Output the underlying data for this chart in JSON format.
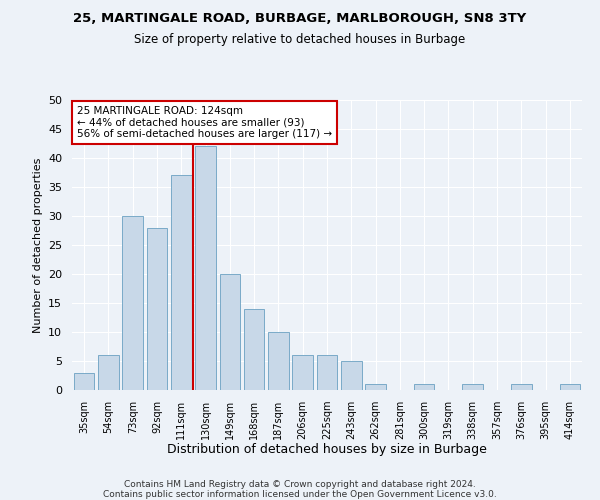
{
  "title1": "25, MARTINGALE ROAD, BURBAGE, MARLBOROUGH, SN8 3TY",
  "title2": "Size of property relative to detached houses in Burbage",
  "xlabel": "Distribution of detached houses by size in Burbage",
  "ylabel": "Number of detached properties",
  "categories": [
    "35sqm",
    "54sqm",
    "73sqm",
    "92sqm",
    "111sqm",
    "130sqm",
    "149sqm",
    "168sqm",
    "187sqm",
    "206sqm",
    "225sqm",
    "243sqm",
    "262sqm",
    "281sqm",
    "300sqm",
    "319sqm",
    "338sqm",
    "357sqm",
    "376sqm",
    "395sqm",
    "414sqm"
  ],
  "values": [
    3,
    6,
    30,
    28,
    37,
    42,
    20,
    14,
    10,
    6,
    6,
    5,
    1,
    0,
    1,
    0,
    1,
    0,
    1,
    0,
    1
  ],
  "bar_color": "#c8d8e8",
  "bar_edge_color": "#7aaac8",
  "vline_x": 4.5,
  "vline_color": "#cc0000",
  "annotation_text": "25 MARTINGALE ROAD: 124sqm\n← 44% of detached houses are smaller (93)\n56% of semi-detached houses are larger (117) →",
  "annotation_box_color": "#ffffff",
  "annotation_box_edge": "#cc0000",
  "ylim": [
    0,
    50
  ],
  "yticks": [
    0,
    5,
    10,
    15,
    20,
    25,
    30,
    35,
    40,
    45,
    50
  ],
  "footer1": "Contains HM Land Registry data © Crown copyright and database right 2024.",
  "footer2": "Contains public sector information licensed under the Open Government Licence v3.0.",
  "bg_color": "#edf2f8",
  "plot_bg_color": "#edf2f8"
}
